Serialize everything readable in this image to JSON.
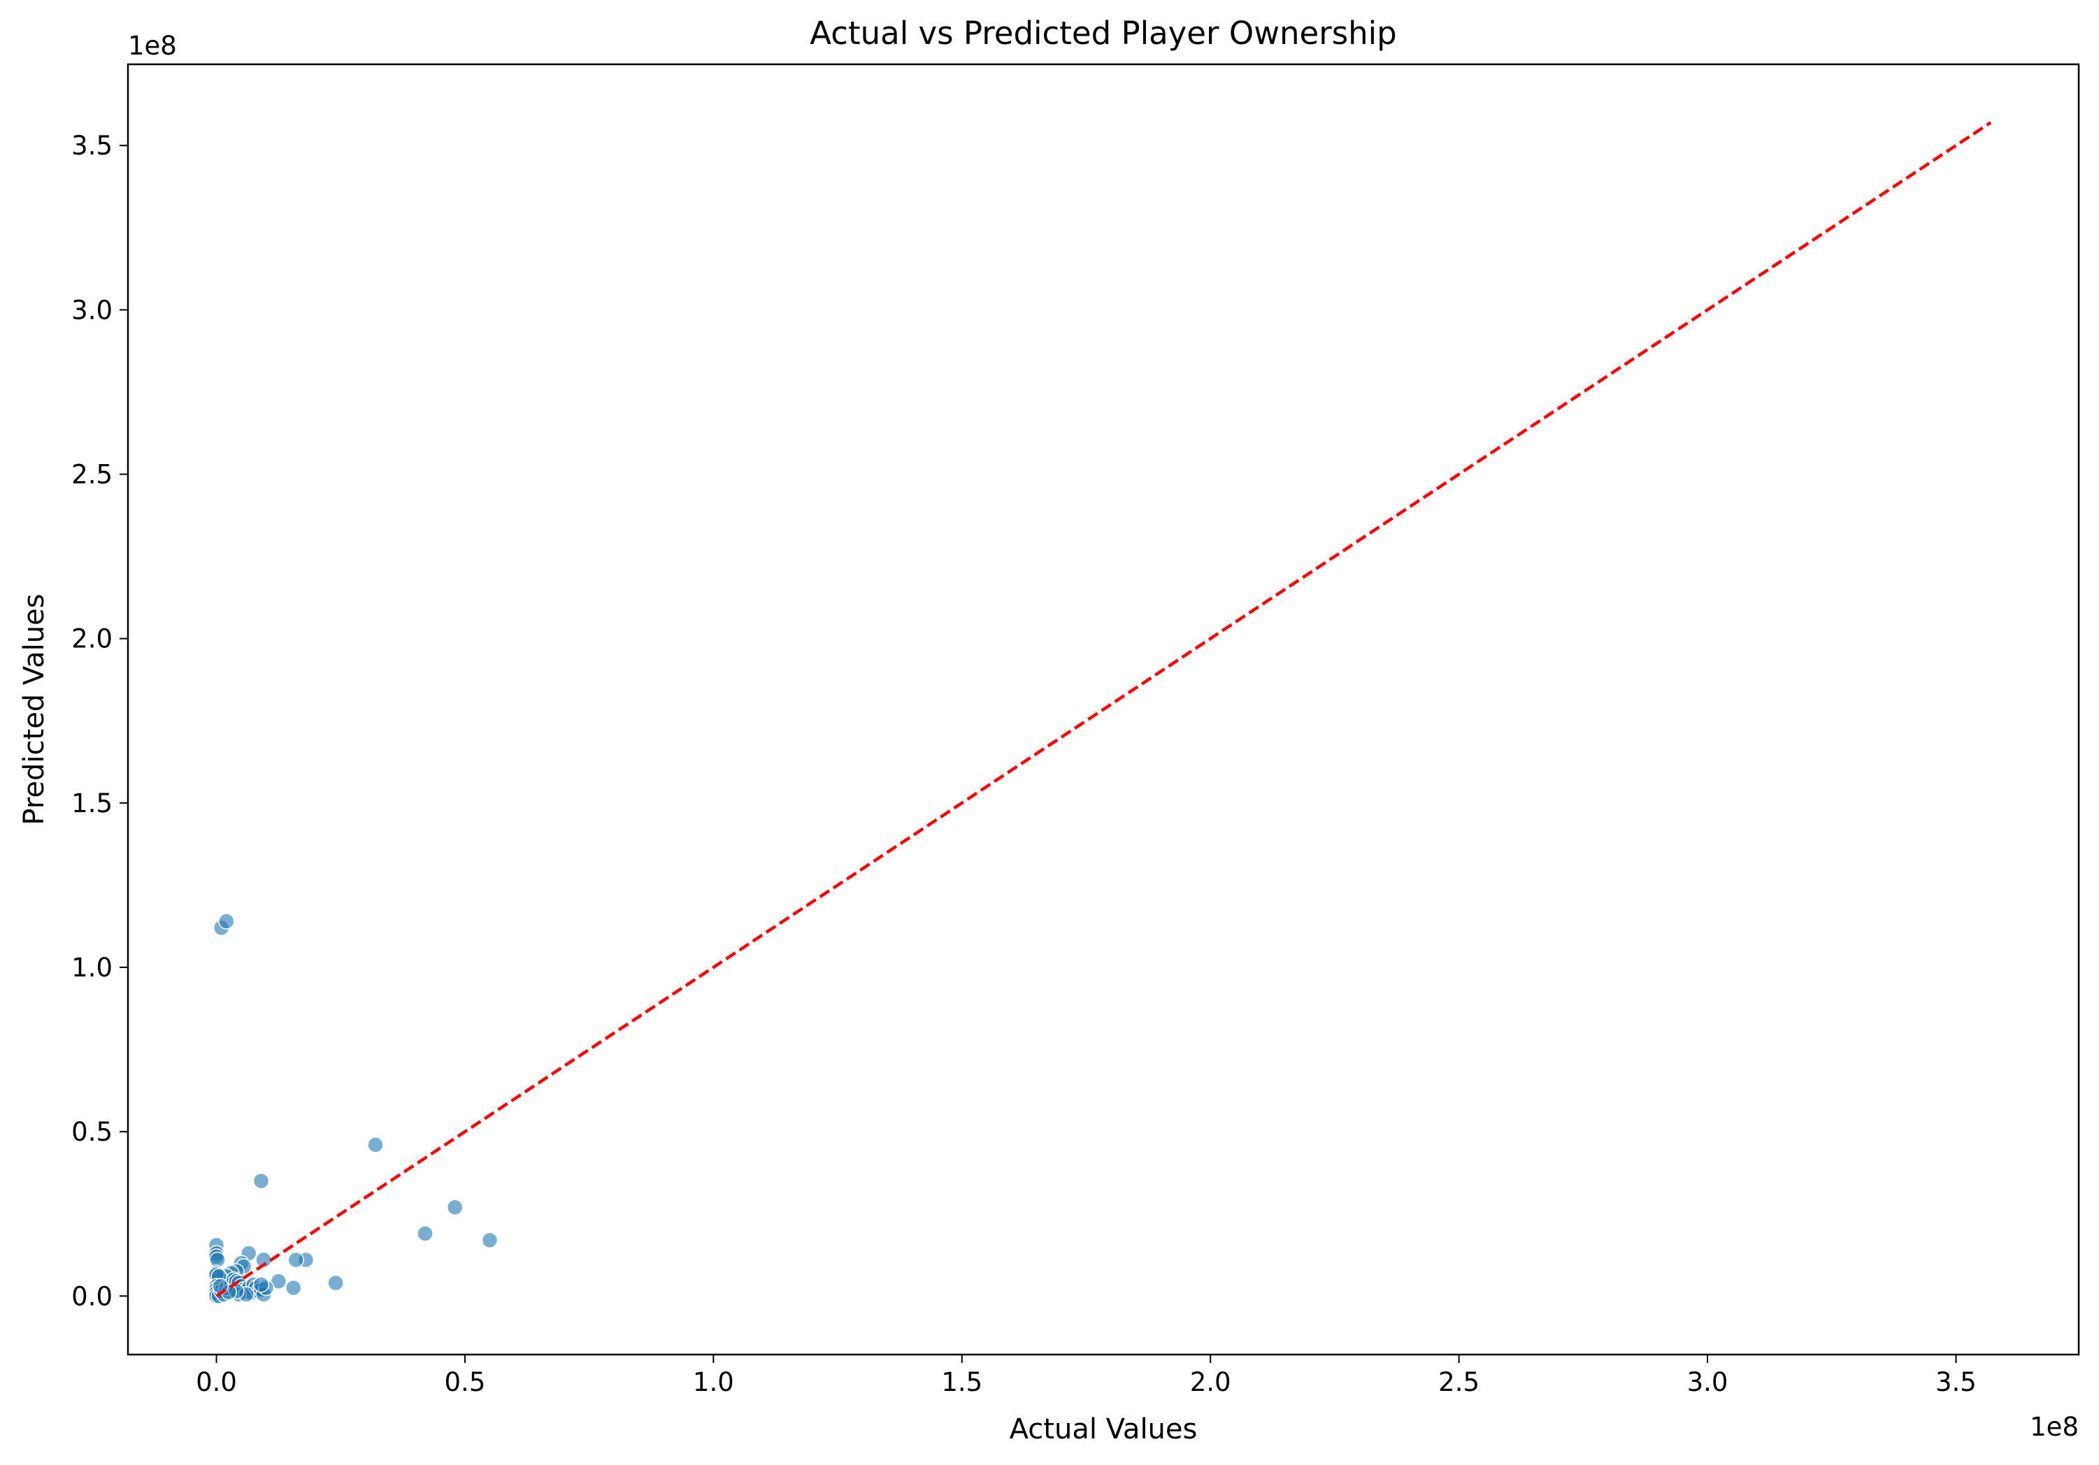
{
  "chart_data": {
    "type": "scatter",
    "title": "Actual vs Predicted Player Ownership",
    "xlabel": "Actual Values",
    "ylabel": "Predicted Values",
    "x_offset_label": "1e8",
    "y_offset_label": "1e8",
    "xlim": [
      -0.178,
      3.747
    ],
    "ylim": [
      -0.178,
      3.747
    ],
    "x_ticks": [
      0.0,
      0.5,
      1.0,
      1.5,
      2.0,
      2.5,
      3.0,
      3.5
    ],
    "x_tick_labels": [
      "0.0",
      "0.5",
      "1.0",
      "1.5",
      "2.0",
      "2.5",
      "3.0",
      "3.5"
    ],
    "y_ticks": [
      0.0,
      0.5,
      1.0,
      1.5,
      2.0,
      2.5,
      3.0,
      3.5
    ],
    "y_tick_labels": [
      "0.0",
      "0.5",
      "1.0",
      "1.5",
      "2.0",
      "2.5",
      "3.0",
      "3.5"
    ],
    "grid": false,
    "colors": {
      "points": "#1f77b4",
      "reference_line": "#ff0000"
    },
    "reference_line": {
      "x": [
        0.0,
        3.57
      ],
      "y": [
        0.0,
        3.57
      ],
      "style": "dashed"
    },
    "points": [
      {
        "x": 0.01,
        "y": 1.12
      },
      {
        "x": 0.02,
        "y": 1.14
      },
      {
        "x": 0.32,
        "y": 0.46
      },
      {
        "x": 0.09,
        "y": 0.35
      },
      {
        "x": 0.48,
        "y": 0.27
      },
      {
        "x": 0.42,
        "y": 0.19
      },
      {
        "x": 0.55,
        "y": 0.17
      },
      {
        "x": 0.24,
        "y": 0.04
      },
      {
        "x": 0.18,
        "y": 0.11
      },
      {
        "x": 0.16,
        "y": 0.11
      },
      {
        "x": 0.155,
        "y": 0.025
      },
      {
        "x": 0.125,
        "y": 0.045
      },
      {
        "x": 0.095,
        "y": 0.11
      },
      {
        "x": 0.065,
        "y": 0.13
      },
      {
        "x": 0.05,
        "y": 0.1
      },
      {
        "x": 0.055,
        "y": 0.09
      },
      {
        "x": 0.04,
        "y": 0.075
      },
      {
        "x": 0.03,
        "y": 0.07
      },
      {
        "x": 0.02,
        "y": 0.06
      },
      {
        "x": 0.01,
        "y": 0.05
      },
      {
        "x": 0.0,
        "y": 0.155
      },
      {
        "x": 0.0,
        "y": 0.13
      },
      {
        "x": 0.0,
        "y": 0.12
      },
      {
        "x": 0.002,
        "y": 0.11
      },
      {
        "x": 0.0,
        "y": 0.07
      },
      {
        "x": 0.0,
        "y": 0.065
      },
      {
        "x": 0.005,
        "y": 0.06
      },
      {
        "x": 0.0,
        "y": 0.03
      },
      {
        "x": 0.0,
        "y": 0.02
      },
      {
        "x": 0.0,
        "y": 0.01
      },
      {
        "x": 0.0,
        "y": 0.0
      },
      {
        "x": 0.005,
        "y": 0.0
      },
      {
        "x": 0.01,
        "y": 0.015
      },
      {
        "x": 0.015,
        "y": 0.005
      },
      {
        "x": 0.02,
        "y": 0.025
      },
      {
        "x": 0.03,
        "y": 0.035
      },
      {
        "x": 0.035,
        "y": 0.05
      },
      {
        "x": 0.04,
        "y": 0.045
      },
      {
        "x": 0.045,
        "y": 0.04
      },
      {
        "x": 0.05,
        "y": 0.03
      },
      {
        "x": 0.055,
        "y": 0.02
      },
      {
        "x": 0.06,
        "y": 0.015
      },
      {
        "x": 0.065,
        "y": 0.025
      },
      {
        "x": 0.07,
        "y": 0.01
      },
      {
        "x": 0.075,
        "y": 0.035
      },
      {
        "x": 0.08,
        "y": 0.025
      },
      {
        "x": 0.085,
        "y": 0.015
      },
      {
        "x": 0.09,
        "y": 0.02
      },
      {
        "x": 0.095,
        "y": 0.005
      },
      {
        "x": 0.1,
        "y": 0.025
      },
      {
        "x": 0.09,
        "y": 0.035
      },
      {
        "x": 0.045,
        "y": 0.005
      },
      {
        "x": 0.06,
        "y": 0.005
      },
      {
        "x": 0.04,
        "y": 0.015
      },
      {
        "x": 0.025,
        "y": 0.012
      },
      {
        "x": 0.008,
        "y": 0.03
      }
    ]
  }
}
